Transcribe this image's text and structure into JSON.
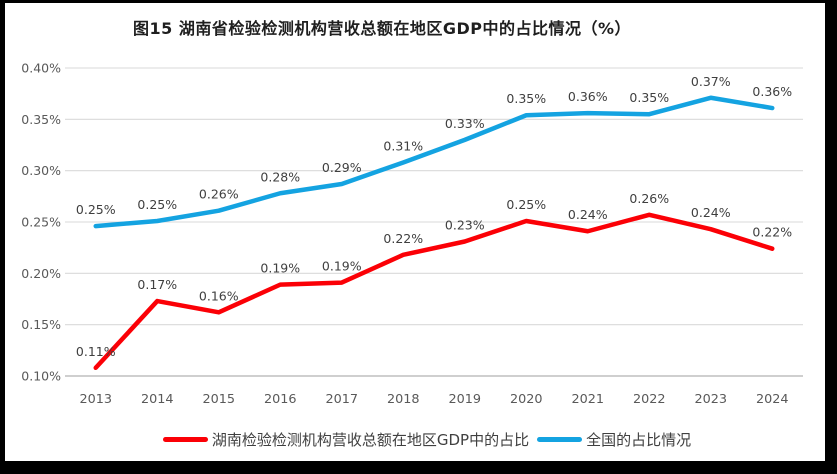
{
  "title": "图15 湖南省检验检测机构营收总额在地区GDP中的占比情况（%）",
  "chart_data": {
    "type": "line",
    "title": "图15 湖南省检验检测机构营收总额在地区GDP中的占比情况（%）",
    "categories": [
      "2013",
      "2014",
      "2015",
      "2016",
      "2017",
      "2018",
      "2019",
      "2020",
      "2021",
      "2022",
      "2023",
      "2024"
    ],
    "series": [
      {
        "name": "湖南检验检测机构营收总额在地区GDP中的占比",
        "color": "#fb0006",
        "values": [
          0.108,
          0.173,
          0.162,
          0.189,
          0.191,
          0.218,
          0.231,
          0.251,
          0.241,
          0.257,
          0.243,
          0.224
        ],
        "labels": [
          "0.11%",
          "0.17%",
          "0.16%",
          "0.19%",
          "0.19%",
          "0.22%",
          "0.23%",
          "0.25%",
          "0.24%",
          "0.26%",
          "0.24%",
          "0.22%"
        ]
      },
      {
        "name": "全国的占比情况",
        "color": "#14a3e1",
        "values": [
          0.246,
          0.251,
          0.261,
          0.278,
          0.287,
          0.308,
          0.33,
          0.354,
          0.356,
          0.355,
          0.371,
          0.361
        ],
        "labels": [
          "0.25%",
          "0.25%",
          "0.26%",
          "0.28%",
          "0.29%",
          "0.31%",
          "0.33%",
          "0.35%",
          "0.36%",
          "0.35%",
          "0.37%",
          "0.36%"
        ]
      }
    ],
    "ylim": [
      0.1,
      0.4
    ],
    "ytick_step": 0.05,
    "ytick_labels": [
      "0.10%",
      "0.15%",
      "0.20%",
      "0.25%",
      "0.30%",
      "0.35%",
      "0.40%"
    ],
    "xlabel": "",
    "ylabel": "",
    "grid": true,
    "legend_position": "bottom",
    "colors": {
      "gridline": "#d9d9d9",
      "axis_line": "#bfbfbf",
      "tick_label": "#595959",
      "data_label": "#3f3f3f",
      "title": "#1f1f1f"
    }
  }
}
